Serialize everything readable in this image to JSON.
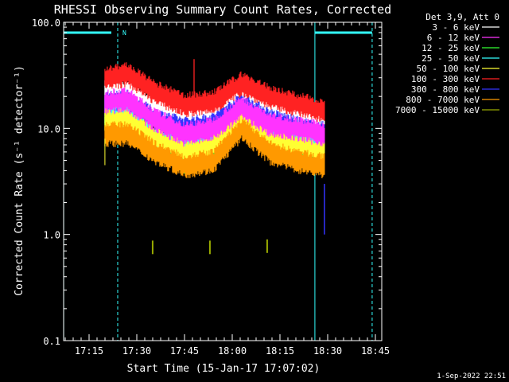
{
  "chart_data": {
    "type": "line",
    "title": "RHESSI Observing Summary Count Rates, Corrected",
    "xlabel": "Start Time (15-Jan-17 17:07:02)",
    "ylabel": "Corrected Count Rate (s⁻¹ detector⁻¹)",
    "yscale": "log",
    "ylim": [
      0.1,
      100.0
    ],
    "xlim_minutes": [
      17.1167,
      18.7833
    ],
    "x_tick_labels": [
      "17:15",
      "17:30",
      "17:45",
      "18:00",
      "18:15",
      "18:30",
      "18:45"
    ],
    "x_tick_values": [
      17.25,
      17.5,
      17.75,
      18.0,
      18.25,
      18.5,
      18.75
    ],
    "y_tick_labels": [
      "100.0",
      "10.0",
      "1.0",
      "0.1"
    ],
    "y_tick_values": [
      100,
      10,
      1,
      0.1
    ],
    "legend_header": "Det 3,9, Att 0",
    "legend_position": "top-right",
    "data_range_hours": [
      17.333,
      18.483
    ],
    "night_marker_label": "N",
    "night_intervals_hours": [
      [
        17.117,
        17.4
      ],
      [
        18.433,
        18.733
      ]
    ],
    "series": [
      {
        "name": "3 - 6 keV",
        "color": "#ffffff",
        "hours": [
          17.333,
          17.45,
          17.6,
          17.75,
          17.9,
          18.05,
          18.2,
          18.35,
          18.483
        ],
        "values": [
          22,
          23,
          16,
          13,
          15,
          21,
          15,
          13,
          12
        ]
      },
      {
        "name": "6 - 12 keV",
        "color": "#ff33ff",
        "hours": [
          17.333,
          17.45,
          17.6,
          17.75,
          17.9,
          18.05,
          18.2,
          18.35,
          18.483
        ],
        "values": [
          18,
          19,
          12,
          9,
          10,
          16,
          11,
          10,
          9
        ]
      },
      {
        "name": "12 - 25 keV",
        "color": "#33ff33",
        "hours": [
          17.333,
          17.45,
          17.6,
          17.75,
          17.9,
          18.05,
          18.2,
          18.35,
          18.483
        ],
        "values": [
          11,
          11,
          7,
          5,
          6,
          12,
          7,
          6,
          5
        ]
      },
      {
        "name": "25 - 50 keV",
        "color": "#33ffff",
        "hours": [
          17.333,
          17.45,
          17.6,
          17.75,
          17.9,
          18.05,
          18.2,
          18.35,
          18.483
        ],
        "values": [
          13,
          13,
          8,
          7,
          8,
          14,
          9,
          8,
          7
        ]
      },
      {
        "name": "50 - 100 keV",
        "color": "#ffff33",
        "hours": [
          17.333,
          17.45,
          17.6,
          17.75,
          17.9,
          18.05,
          18.2,
          18.35,
          18.483
        ],
        "values": [
          12,
          12,
          8,
          6,
          7,
          13,
          8,
          7,
          6
        ]
      },
      {
        "name": "100 - 300 keV",
        "color": "#ff2222",
        "hours": [
          17.333,
          17.45,
          17.6,
          17.75,
          17.9,
          18.05,
          18.2,
          18.35,
          18.483
        ],
        "values": [
          30,
          33,
          22,
          17,
          18,
          27,
          20,
          17,
          15
        ]
      },
      {
        "name": "300 - 800 keV",
        "color": "#3333ff",
        "hours": [
          17.333,
          17.45,
          17.6,
          17.75,
          17.9,
          18.05,
          18.2,
          18.35,
          18.483
        ],
        "values": [
          17,
          18,
          12,
          10,
          11,
          17,
          12,
          10,
          9
        ]
      },
      {
        "name": "800 - 7000 keV",
        "color": "#ff9900",
        "hours": [
          17.333,
          17.45,
          17.6,
          17.75,
          17.9,
          18.05,
          18.2,
          18.35,
          18.483
        ],
        "values": [
          9,
          9,
          6,
          4.5,
          5,
          10,
          6,
          5,
          4.5
        ]
      },
      {
        "name": "7000 - 15000 keV",
        "color": "#99aa00",
        "hours": [
          17.583,
          17.883,
          18.183
        ],
        "values": [
          0.75,
          0.75,
          0.77
        ]
      }
    ],
    "timestamp": "1-Sep-2022 22:51"
  }
}
